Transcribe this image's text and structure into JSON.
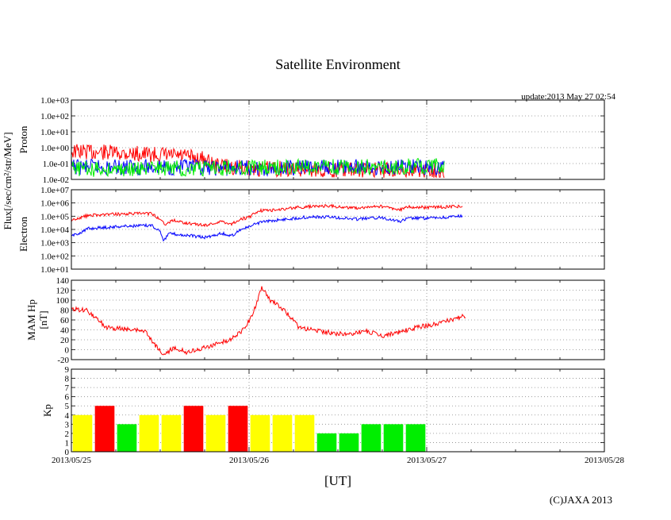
{
  "title": "Satellite Environment",
  "update": "update:2013 May 27 02:54",
  "copyright": "(C)JAXA 2013",
  "x_axis": {
    "label": "[UT]",
    "ticks": [
      "2013/05/25",
      "2013/05/26",
      "2013/05/27",
      "2013/05/28"
    ],
    "range_days": [
      0,
      3
    ]
  },
  "flux_label": "Flux[/sec/cm²/str/MeV]",
  "colors": {
    "red": "#ff0000",
    "blue": "#0000ff",
    "green": "#00ee00",
    "yellow": "#ffff00",
    "grid": "#888888"
  },
  "chart_data": [
    {
      "type": "line",
      "panel": "proton",
      "ylabel": "Proton",
      "yscale": "log",
      "ylim": [
        0.01,
        1000
      ],
      "yticks": [
        "1.0e-02",
        "1.0e-01",
        "1.0e+00",
        "1.0e+01",
        "1.0e+02",
        "1.0e+03"
      ],
      "x_end_days": 2.1,
      "series": [
        {
          "name": "proton-red",
          "color": "#ff0000",
          "points": [
            [
              0,
              0.6
            ],
            [
              0.3,
              0.45
            ],
            [
              0.6,
              0.3
            ],
            [
              0.75,
              0.2
            ],
            [
              0.8,
              0.08
            ],
            [
              1.0,
              0.05
            ],
            [
              1.5,
              0.04
            ],
            [
              2.1,
              0.04
            ]
          ]
        },
        {
          "name": "proton-blue",
          "color": "#0000ff",
          "points": [
            [
              0,
              0.06
            ],
            [
              0.5,
              0.06
            ],
            [
              1.0,
              0.05
            ],
            [
              1.5,
              0.06
            ],
            [
              2.1,
              0.06
            ]
          ]
        },
        {
          "name": "proton-green",
          "color": "#00ee00",
          "points": [
            [
              0,
              0.045
            ],
            [
              0.5,
              0.05
            ],
            [
              1.0,
              0.055
            ],
            [
              1.5,
              0.06
            ],
            [
              2.1,
              0.07
            ]
          ]
        }
      ]
    },
    {
      "type": "line",
      "panel": "electron",
      "ylabel": "Electron",
      "yscale": "log",
      "ylim": [
        10,
        10000000
      ],
      "yticks": [
        "1.0e+01",
        "1.0e+02",
        "1.0e+03",
        "1.0e+04",
        "1.0e+05",
        "1.0e+06",
        "1.0e+07"
      ],
      "series": [
        {
          "name": "electron-red",
          "color": "#ff0000",
          "points": [
            [
              0,
              50000
            ],
            [
              0.1,
              120000
            ],
            [
              0.3,
              150000
            ],
            [
              0.45,
              160000
            ],
            [
              0.5,
              60000
            ],
            [
              0.53,
              25000
            ],
            [
              0.57,
              50000
            ],
            [
              0.65,
              30000
            ],
            [
              0.75,
              20000
            ],
            [
              0.85,
              40000
            ],
            [
              0.9,
              25000
            ],
            [
              0.95,
              60000
            ],
            [
              1.0,
              80000
            ],
            [
              1.05,
              250000
            ],
            [
              1.15,
              300000
            ],
            [
              1.3,
              500000
            ],
            [
              1.45,
              600000
            ],
            [
              1.6,
              400000
            ],
            [
              1.75,
              550000
            ],
            [
              1.85,
              300000
            ],
            [
              1.9,
              500000
            ],
            [
              2.0,
              450000
            ],
            [
              2.1,
              500000
            ],
            [
              2.2,
              550000
            ]
          ]
        },
        {
          "name": "electron-blue",
          "color": "#0000ff",
          "points": [
            [
              0,
              3000
            ],
            [
              0.1,
              12000
            ],
            [
              0.3,
              18000
            ],
            [
              0.45,
              20000
            ],
            [
              0.5,
              8000
            ],
            [
              0.52,
              1500
            ],
            [
              0.55,
              5000
            ],
            [
              0.65,
              3500
            ],
            [
              0.75,
              2500
            ],
            [
              0.85,
              5000
            ],
            [
              0.9,
              3000
            ],
            [
              0.95,
              10000
            ],
            [
              1.0,
              15000
            ],
            [
              1.05,
              30000
            ],
            [
              1.15,
              50000
            ],
            [
              1.3,
              80000
            ],
            [
              1.45,
              90000
            ],
            [
              1.6,
              60000
            ],
            [
              1.75,
              80000
            ],
            [
              1.85,
              40000
            ],
            [
              1.9,
              70000
            ],
            [
              2.0,
              70000
            ],
            [
              2.1,
              80000
            ],
            [
              2.2,
              100000
            ]
          ]
        }
      ]
    },
    {
      "type": "line",
      "panel": "mam",
      "ylabel": "MAM Hp",
      "ylabel2": "[nT]",
      "yscale": "linear",
      "ylim": [
        -20,
        140
      ],
      "yticks": [
        "-20",
        "0",
        "20",
        "40",
        "60",
        "80",
        "100",
        "120",
        "140"
      ],
      "series": [
        {
          "name": "mam-hp",
          "color": "#ff0000",
          "points": [
            [
              0,
              82
            ],
            [
              0.08,
              80
            ],
            [
              0.15,
              60
            ],
            [
              0.2,
              45
            ],
            [
              0.28,
              42
            ],
            [
              0.35,
              40
            ],
            [
              0.42,
              35
            ],
            [
              0.47,
              10
            ],
            [
              0.52,
              -10
            ],
            [
              0.58,
              5
            ],
            [
              0.65,
              -5
            ],
            [
              0.75,
              5
            ],
            [
              0.85,
              15
            ],
            [
              0.92,
              25
            ],
            [
              0.98,
              45
            ],
            [
              1.03,
              80
            ],
            [
              1.07,
              125
            ],
            [
              1.12,
              100
            ],
            [
              1.2,
              80
            ],
            [
              1.28,
              45
            ],
            [
              1.35,
              40
            ],
            [
              1.45,
              35
            ],
            [
              1.55,
              30
            ],
            [
              1.65,
              38
            ],
            [
              1.75,
              28
            ],
            [
              1.85,
              36
            ],
            [
              1.95,
              46
            ],
            [
              2.05,
              52
            ],
            [
              2.15,
              62
            ],
            [
              2.22,
              68
            ]
          ]
        }
      ]
    },
    {
      "type": "bar",
      "panel": "kp",
      "ylabel": "Kp",
      "ylim": [
        0,
        9
      ],
      "yticks": [
        "0",
        "1",
        "2",
        "3",
        "4",
        "5",
        "6",
        "7",
        "8",
        "9"
      ],
      "interval_hours": 3,
      "values": [
        4,
        5,
        3,
        4,
        4,
        5,
        4,
        5,
        4,
        4,
        4,
        2,
        2,
        3,
        3,
        3
      ],
      "colors": [
        "#ffff00",
        "#ff0000",
        "#00ee00",
        "#ffff00",
        "#ffff00",
        "#ff0000",
        "#ffff00",
        "#ff0000",
        "#ffff00",
        "#ffff00",
        "#ffff00",
        "#00ee00",
        "#00ee00",
        "#00ee00",
        "#00ee00",
        "#00ee00"
      ]
    }
  ]
}
